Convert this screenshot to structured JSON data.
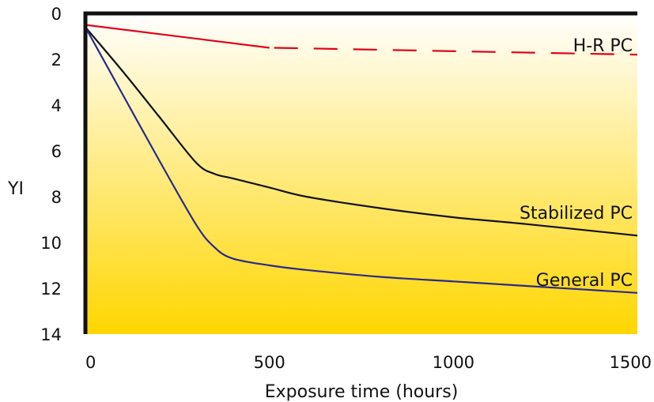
{
  "chart_data": {
    "type": "line",
    "title": "",
    "xlabel": "Exposure time (hours)",
    "ylabel": "YI",
    "xlim": [
      0,
      1500
    ],
    "ylim": [
      0,
      14
    ],
    "y_inverted": true,
    "grid": false,
    "x_ticks": [
      "0",
      "500",
      "1000",
      "1500"
    ],
    "y_ticks": [
      "0",
      "2",
      "4",
      "6",
      "8",
      "10",
      "12",
      "14"
    ],
    "background": {
      "type": "vertical-gradient",
      "top_color": "#ffffff",
      "bottom_color": "#ffd600"
    },
    "series": [
      {
        "name": "H-R PC",
        "color": "#e0001a",
        "style": "solid-then-dashed",
        "dashed_from_x": 500,
        "x": [
          0,
          500,
          1500
        ],
        "y": [
          0.5,
          1.5,
          1.8
        ]
      },
      {
        "name": "Stabilized PC",
        "color": "#111111",
        "style": "solid",
        "x": [
          0,
          100,
          200,
          300,
          350,
          400,
          500,
          600,
          800,
          1000,
          1200,
          1500
        ],
        "y": [
          0.6,
          2.5,
          4.5,
          6.5,
          7.0,
          7.2,
          7.6,
          8.0,
          8.5,
          8.9,
          9.2,
          9.7
        ]
      },
      {
        "name": "General PC",
        "color": "#2b2a8a",
        "style": "solid",
        "x": [
          0,
          100,
          200,
          300,
          350,
          400,
          500,
          600,
          800,
          1000,
          1200,
          1500
        ],
        "y": [
          0.6,
          3.5,
          6.4,
          9.2,
          10.2,
          10.7,
          11.0,
          11.2,
          11.5,
          11.7,
          11.9,
          12.2
        ]
      }
    ]
  }
}
